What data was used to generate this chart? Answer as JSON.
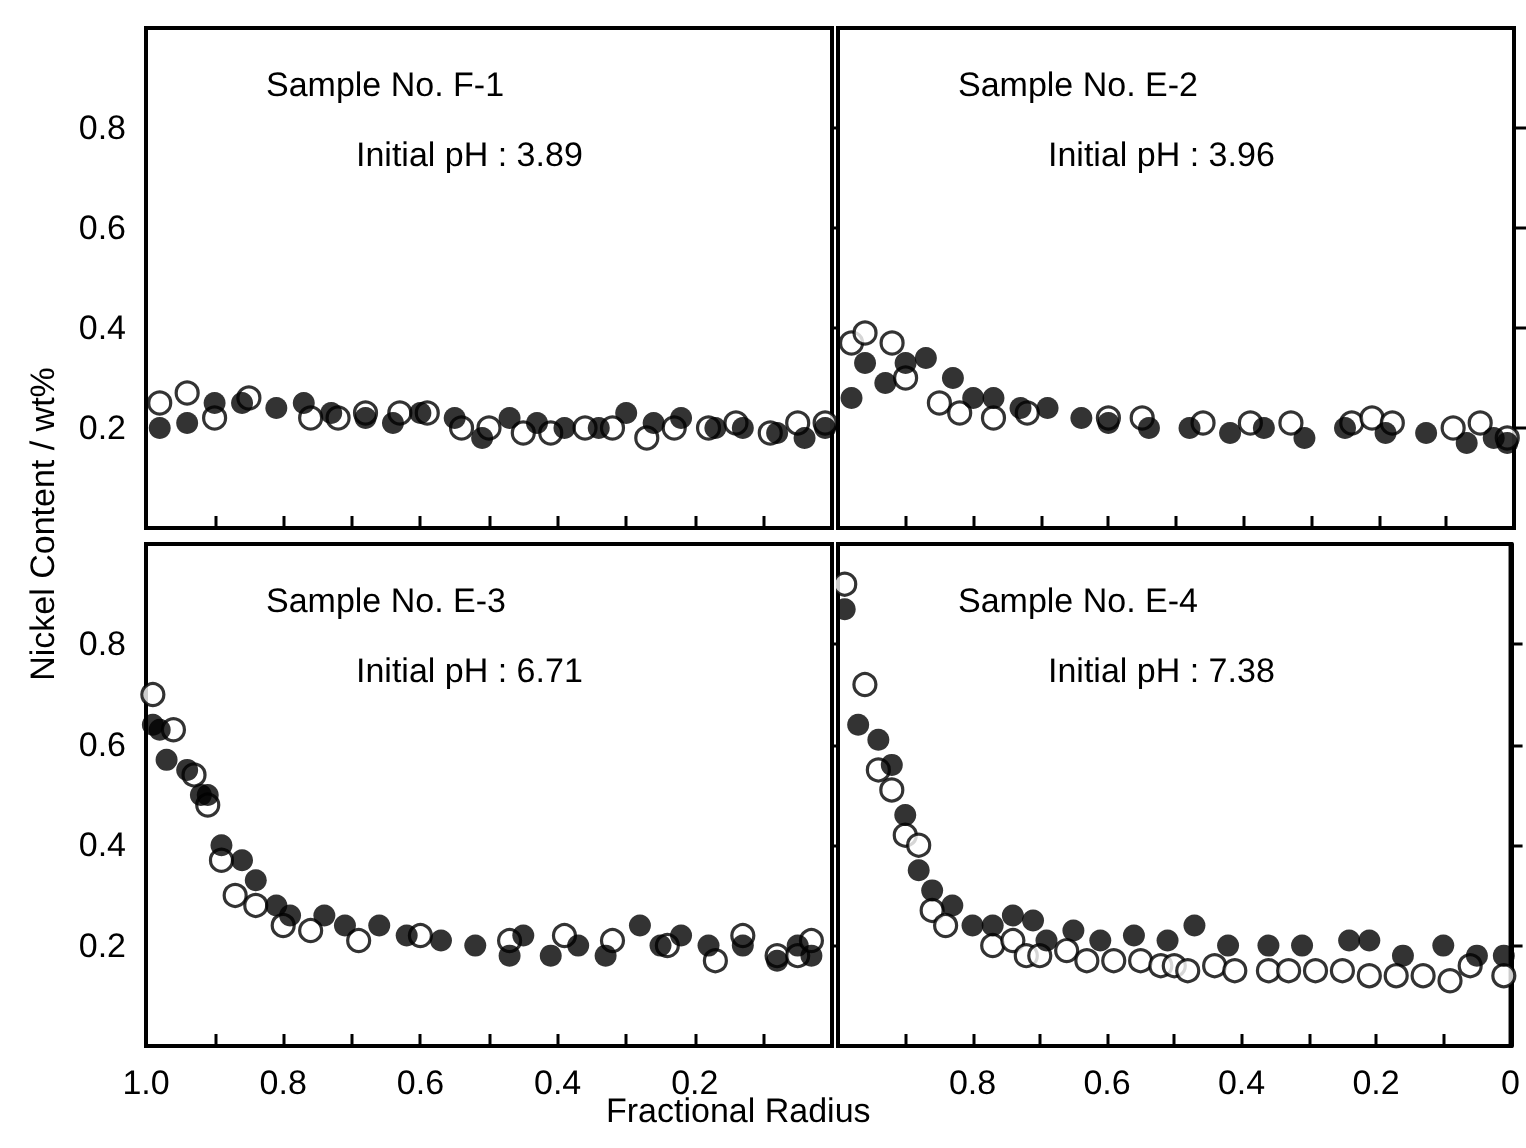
{
  "chart_data": [
    {
      "type": "scatter",
      "title": "Sample No. F-1",
      "subtitle": "Initial pH : 3.89",
      "ylabel": "Nickel Content / wt%",
      "marker": "circle",
      "grid": false,
      "tick_labels": "y",
      "xlim": [
        1,
        0
      ],
      "ylim": [
        0,
        1
      ],
      "xticks": [
        0.9,
        0.8,
        0.7,
        0.6,
        0.5,
        0.4,
        0.3,
        0.2,
        0.1
      ],
      "yticks": [
        0.2,
        0.4,
        0.6,
        0.8
      ],
      "series": [
        {
          "color": "#ffffff",
          "x": [
            0.98,
            0.94,
            0.9,
            0.85,
            0.76,
            0.72,
            0.68,
            0.63,
            0.59,
            0.54,
            0.5,
            0.45,
            0.41,
            0.36,
            0.32,
            0.27,
            0.23,
            0.18,
            0.14,
            0.09,
            0.05,
            0.01
          ],
          "values": [
            0.25,
            0.27,
            0.22,
            0.26,
            0.22,
            0.22,
            0.23,
            0.23,
            0.23,
            0.2,
            0.2,
            0.19,
            0.19,
            0.2,
            0.2,
            0.18,
            0.2,
            0.2,
            0.21,
            0.19,
            0.21,
            0.21
          ]
        },
        {
          "color": "#000000",
          "x": [
            0.98,
            0.94,
            0.9,
            0.86,
            0.81,
            0.77,
            0.73,
            0.68,
            0.64,
            0.6,
            0.55,
            0.51,
            0.47,
            0.43,
            0.39,
            0.34,
            0.3,
            0.26,
            0.22,
            0.17,
            0.13,
            0.08,
            0.04,
            0.01
          ],
          "values": [
            0.2,
            0.21,
            0.25,
            0.25,
            0.24,
            0.25,
            0.23,
            0.22,
            0.21,
            0.23,
            0.22,
            0.18,
            0.22,
            0.21,
            0.2,
            0.2,
            0.23,
            0.21,
            0.22,
            0.2,
            0.2,
            0.19,
            0.18,
            0.2
          ]
        }
      ]
    },
    {
      "type": "scatter",
      "title": "Sample No. E-2",
      "subtitle": "Initial pH : 3.96",
      "marker": "circle",
      "grid": false,
      "tick_labels": false,
      "xlim": [
        1,
        0
      ],
      "ylim": [
        0,
        1
      ],
      "xticks": [
        0.9,
        0.8,
        0.7,
        0.6,
        0.5,
        0.4,
        0.3,
        0.2,
        0.1
      ],
      "yticks": [
        0.2,
        0.4,
        0.6,
        0.8
      ],
      "series": [
        {
          "color": "#ffffff",
          "x": [
            0.98,
            0.96,
            0.92,
            0.9,
            0.85,
            0.82,
            0.77,
            0.72,
            0.6,
            0.55,
            0.46,
            0.39,
            0.33,
            0.24,
            0.21,
            0.18,
            0.09,
            0.05,
            0.01
          ],
          "values": [
            0.37,
            0.39,
            0.37,
            0.3,
            0.25,
            0.23,
            0.22,
            0.23,
            0.22,
            0.22,
            0.21,
            0.21,
            0.21,
            0.21,
            0.22,
            0.21,
            0.2,
            0.21,
            0.18
          ]
        },
        {
          "color": "#000000",
          "x": [
            0.98,
            0.96,
            0.93,
            0.9,
            0.87,
            0.83,
            0.8,
            0.77,
            0.73,
            0.69,
            0.64,
            0.6,
            0.54,
            0.48,
            0.42,
            0.37,
            0.31,
            0.25,
            0.19,
            0.13,
            0.07,
            0.03,
            0.01
          ],
          "values": [
            0.26,
            0.33,
            0.29,
            0.33,
            0.34,
            0.3,
            0.26,
            0.26,
            0.24,
            0.24,
            0.22,
            0.21,
            0.2,
            0.2,
            0.19,
            0.2,
            0.18,
            0.2,
            0.19,
            0.19,
            0.17,
            0.18,
            0.17
          ]
        }
      ]
    },
    {
      "type": "scatter",
      "title": "Sample No. E-3",
      "subtitle": "Initial pH : 6.71",
      "xlabel": "Fractional Radius",
      "marker": "circle",
      "grid": false,
      "xlim": [
        1,
        0
      ],
      "ylim": [
        0,
        1
      ],
      "xticks": [
        {
          "value": 1,
          "label": "1.0"
        },
        {
          "value": 0.9,
          "label": null
        },
        0.8,
        {
          "value": 0.7,
          "label": null
        },
        0.6,
        {
          "value": 0.5,
          "label": null
        },
        0.4,
        {
          "value": 0.3,
          "label": null
        },
        0.2,
        {
          "value": 0.1,
          "label": null
        }
      ],
      "yticks": [
        0.2,
        0.4,
        0.6,
        0.8
      ],
      "series": [
        {
          "color": "#ffffff",
          "x": [
            0.99,
            0.96,
            0.93,
            0.91,
            0.89,
            0.87,
            0.84,
            0.8,
            0.76,
            0.69,
            0.6,
            0.47,
            0.39,
            0.32,
            0.24,
            0.17,
            0.13,
            0.08,
            0.05,
            0.03
          ],
          "values": [
            0.7,
            0.63,
            0.54,
            0.48,
            0.37,
            0.3,
            0.28,
            0.24,
            0.23,
            0.21,
            0.22,
            0.21,
            0.22,
            0.21,
            0.2,
            0.17,
            0.22,
            0.18,
            0.18,
            0.21
          ]
        },
        {
          "color": "#000000",
          "x": [
            0.99,
            0.98,
            0.97,
            0.94,
            0.92,
            0.91,
            0.89,
            0.86,
            0.84,
            0.81,
            0.79,
            0.74,
            0.71,
            0.66,
            0.62,
            0.57,
            0.52,
            0.47,
            0.45,
            0.41,
            0.37,
            0.33,
            0.28,
            0.25,
            0.22,
            0.18,
            0.13,
            0.08,
            0.05,
            0.03
          ],
          "values": [
            0.64,
            0.63,
            0.57,
            0.55,
            0.5,
            0.5,
            0.4,
            0.37,
            0.33,
            0.28,
            0.26,
            0.26,
            0.24,
            0.24,
            0.22,
            0.21,
            0.2,
            0.18,
            0.22,
            0.18,
            0.2,
            0.18,
            0.24,
            0.2,
            0.22,
            0.2,
            0.2,
            0.17,
            0.2,
            0.18
          ]
        }
      ]
    },
    {
      "type": "scatter",
      "title": "Sample No. E-4",
      "subtitle": "Initial pH : 7.38",
      "marker": "circle",
      "grid": false,
      "tick_labels": "x",
      "xlim": [
        1,
        0
      ],
      "ylim": [
        0,
        1
      ],
      "xticks": [
        {
          "value": 0.9,
          "label": null
        },
        0.8,
        {
          "value": 0.7,
          "label": null
        },
        0.6,
        {
          "value": 0.5,
          "label": null
        },
        0.4,
        {
          "value": 0.3,
          "label": null
        },
        0.2,
        {
          "value": 0.1,
          "label": null
        },
        {
          "value": 0,
          "label": "0"
        }
      ],
      "yticks": [
        0.2,
        0.4,
        0.6,
        0.8
      ],
      "series": [
        {
          "color": "#ffffff",
          "x": [
            0.99,
            0.96,
            0.94,
            0.92,
            0.9,
            0.88,
            0.86,
            0.84,
            0.77,
            0.74,
            0.72,
            0.7,
            0.66,
            0.63,
            0.59,
            0.55,
            0.52,
            0.5,
            0.48,
            0.44,
            0.41,
            0.36,
            0.33,
            0.29,
            0.25,
            0.21,
            0.17,
            0.13,
            0.09,
            0.06,
            0.01
          ],
          "values": [
            0.92,
            0.72,
            0.55,
            0.51,
            0.42,
            0.4,
            0.27,
            0.24,
            0.2,
            0.21,
            0.18,
            0.18,
            0.19,
            0.17,
            0.17,
            0.17,
            0.16,
            0.16,
            0.15,
            0.16,
            0.15,
            0.15,
            0.15,
            0.15,
            0.15,
            0.14,
            0.14,
            0.14,
            0.13,
            0.16,
            0.14
          ]
        },
        {
          "color": "#000000",
          "x": [
            0.99,
            0.97,
            0.94,
            0.92,
            0.9,
            0.88,
            0.86,
            0.83,
            0.8,
            0.77,
            0.74,
            0.71,
            0.69,
            0.65,
            0.61,
            0.56,
            0.51,
            0.47,
            0.42,
            0.36,
            0.31,
            0.24,
            0.21,
            0.16,
            0.1,
            0.05,
            0.01
          ],
          "values": [
            0.87,
            0.64,
            0.61,
            0.56,
            0.46,
            0.35,
            0.31,
            0.28,
            0.24,
            0.24,
            0.26,
            0.25,
            0.21,
            0.23,
            0.21,
            0.22,
            0.21,
            0.24,
            0.2,
            0.2,
            0.2,
            0.21,
            0.21,
            0.18,
            0.2,
            0.18,
            0.18
          ]
        }
      ]
    }
  ]
}
